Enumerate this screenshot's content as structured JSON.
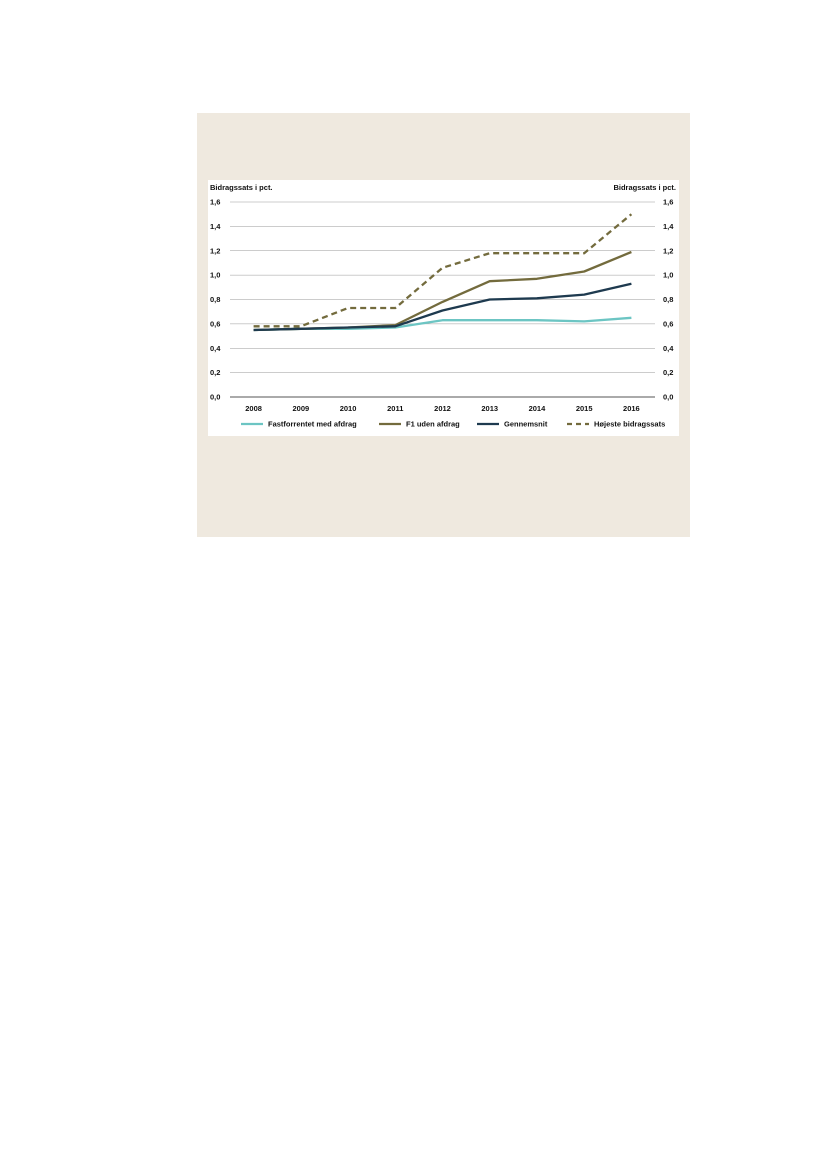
{
  "chart_data": {
    "type": "line",
    "title": "",
    "ylabel_left": "Bidragssats i pct.",
    "ylabel_right": "Bidragssats i pct.",
    "ylim": [
      0,
      1.6
    ],
    "yticks": [
      "0,0",
      "0,2",
      "0,4",
      "0,6",
      "0,8",
      "1,0",
      "1,2",
      "1,4",
      "1,6"
    ],
    "x": [
      "2008",
      "2009",
      "2010",
      "2011",
      "2012",
      "2013",
      "2014",
      "2015",
      "2016"
    ],
    "grid": true,
    "legend_position": "bottom",
    "series": [
      {
        "name": "Fastforrentet med afdrag",
        "color": "#6cc5c3",
        "dashed": false,
        "values": [
          0.55,
          0.56,
          0.56,
          0.57,
          0.63,
          0.63,
          0.63,
          0.62,
          0.65
        ]
      },
      {
        "name": "F1 uden afdrag",
        "color": "#736b3d",
        "dashed": false,
        "values": [
          0.55,
          0.56,
          0.57,
          0.59,
          0.78,
          0.95,
          0.97,
          1.03,
          1.19
        ]
      },
      {
        "name": "Gennemsnit",
        "color": "#1e3a4f",
        "dashed": false,
        "values": [
          0.55,
          0.56,
          0.57,
          0.58,
          0.71,
          0.8,
          0.81,
          0.84,
          0.93
        ]
      },
      {
        "name": "Højeste bidragssats",
        "color": "#736b3d",
        "dashed": true,
        "values": [
          0.58,
          0.58,
          0.73,
          0.73,
          1.06,
          1.18,
          1.18,
          1.18,
          1.5
        ]
      }
    ]
  }
}
